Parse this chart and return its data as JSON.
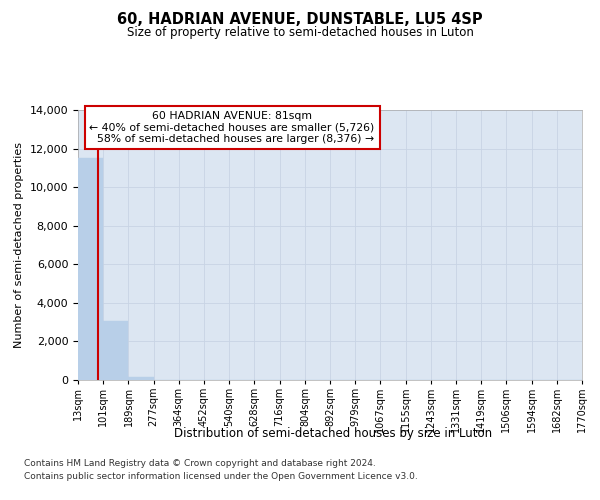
{
  "title": "60, HADRIAN AVENUE, DUNSTABLE, LU5 4SP",
  "subtitle": "Size of property relative to semi-detached houses in Luton",
  "xlabel": "Distribution of semi-detached houses by size in Luton",
  "ylabel": "Number of semi-detached properties",
  "property_size": 81,
  "property_label": "60 HADRIAN AVENUE: 81sqm",
  "smaller_pct": 40,
  "smaller_count": 5726,
  "larger_pct": 58,
  "larger_count": 8376,
  "bar_color": "#b8cfe8",
  "marker_line_color": "#cc0000",
  "annotation_box_edgecolor": "#cc0000",
  "grid_color": "#c8d4e4",
  "background_color": "#dce6f2",
  "bin_edges": [
    13,
    101,
    189,
    277,
    364,
    452,
    540,
    628,
    716,
    804,
    892,
    979,
    1067,
    1155,
    1243,
    1331,
    1419,
    1506,
    1594,
    1682,
    1770
  ],
  "bin_labels": [
    "13sqm",
    "101sqm",
    "189sqm",
    "277sqm",
    "364sqm",
    "452sqm",
    "540sqm",
    "628sqm",
    "716sqm",
    "804sqm",
    "892sqm",
    "979sqm",
    "1067sqm",
    "1155sqm",
    "1243sqm",
    "1331sqm",
    "1419sqm",
    "1506sqm",
    "1594sqm",
    "1682sqm",
    "1770sqm"
  ],
  "bar_heights": [
    11500,
    3050,
    150,
    0,
    0,
    0,
    0,
    0,
    0,
    0,
    0,
    0,
    0,
    0,
    0,
    0,
    0,
    0,
    0,
    0
  ],
  "ylim_max": 14000,
  "yticks": [
    0,
    2000,
    4000,
    6000,
    8000,
    10000,
    12000,
    14000
  ],
  "footer_line1": "Contains HM Land Registry data © Crown copyright and database right 2024.",
  "footer_line2": "Contains public sector information licensed under the Open Government Licence v3.0."
}
